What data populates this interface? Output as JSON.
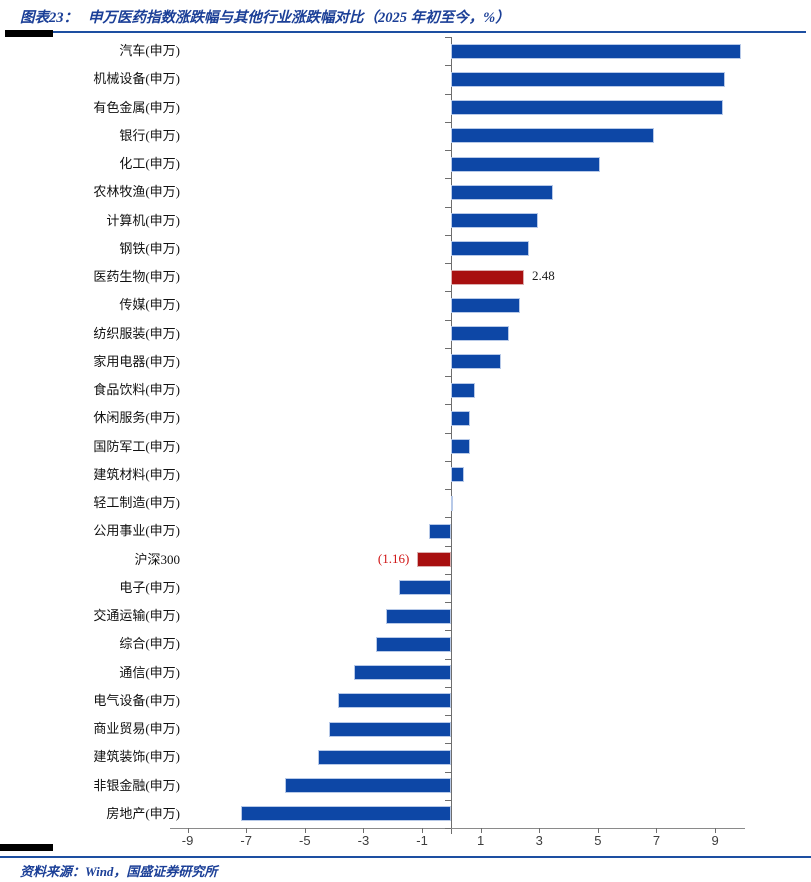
{
  "header": {
    "figure_label": "图表23：",
    "title": "申万医药指数涨跌幅与其他行业涨跌幅对比（2025 年初至今，%）"
  },
  "footer": {
    "text": "资料来源：Wind，国盛证券研究所"
  },
  "theme": {
    "accent_blue": "#1d4fa1",
    "title_blue": "#1b3f97",
    "bar_blue": "#0d47a6",
    "bar_red": "#a80f0f",
    "label_red": "#d01515",
    "axis_gray": "#6e6e6e"
  },
  "chart_data": {
    "type": "bar",
    "orientation": "horizontal",
    "title": "申万医药指数涨跌幅与其他行业涨跌幅对比（2025 年初至今，%）",
    "unit": "%",
    "categories": [
      "汽车(申万)",
      "机械设备(申万)",
      "有色金属(申万)",
      "银行(申万)",
      "化工(申万)",
      "农林牧渔(申万)",
      "计算机(申万)",
      "钢铁(申万)",
      "医药生物(申万)",
      "传媒(申万)",
      "纺织服装(申万)",
      "家用电器(申万)",
      "食品饮料(申万)",
      "休闲服务(申万)",
      "国防军工(申万)",
      "建筑材料(申万)",
      "轻工制造(申万)",
      "公用事业(申万)",
      "沪深300",
      "电子(申万)",
      "交通运输(申万)",
      "综合(申万)",
      "通信(申万)",
      "电气设备(申万)",
      "商业贸易(申万)",
      "建筑装饰(申万)",
      "非银金融(申万)",
      "房地产(申万)"
    ],
    "values": [
      9.88,
      9.35,
      9.27,
      6.93,
      5.06,
      3.48,
      2.94,
      2.66,
      2.48,
      2.35,
      1.97,
      1.68,
      0.8,
      0.65,
      0.63,
      0.44,
      0.04,
      -0.75,
      -1.16,
      -1.77,
      -2.23,
      -2.57,
      -3.32,
      -3.88,
      -4.17,
      -4.56,
      -5.69,
      -7.19
    ],
    "bar_color": "#0d47a6",
    "highlight": {
      "indices": [
        8,
        18
      ],
      "color": "#a80f0f"
    },
    "data_labels": [
      {
        "index": 8,
        "text": "2.48",
        "color": "#1a1a1a",
        "side": "end"
      },
      {
        "index": 18,
        "text": "(1.16)",
        "color": "#d01515",
        "side": "start"
      }
    ],
    "xlim": [
      -9.6,
      10.6
    ],
    "x_ticks": [
      -9,
      -7,
      -5,
      -3,
      -1,
      1,
      3,
      5,
      7,
      9
    ],
    "grid": false,
    "legend": "none"
  }
}
